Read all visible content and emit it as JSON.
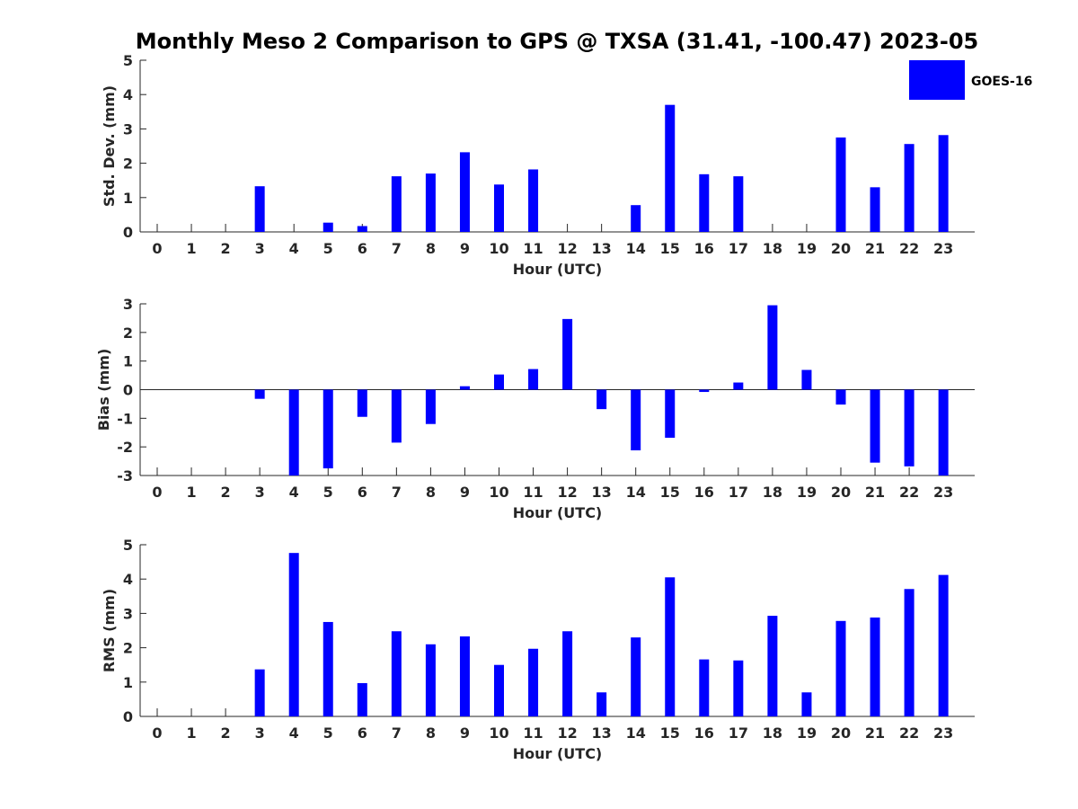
{
  "title": "Monthly Meso 2 Comparison to GPS @ TXSA (31.41, -100.47) 2023-05",
  "legend": {
    "label": "GOES-16",
    "color": "#0000ff",
    "placement": "top-right"
  },
  "chart_data": [
    {
      "type": "bar",
      "xlabel": "Hour (UTC)",
      "ylabel": "Std. Dev. (mm)",
      "ylim": [
        0,
        5
      ],
      "yticks": [
        "0",
        "1",
        "2",
        "3",
        "4",
        "5"
      ],
      "categories": [
        "0",
        "1",
        "2",
        "3",
        "4",
        "5",
        "6",
        "7",
        "8",
        "9",
        "10",
        "11",
        "12",
        "13",
        "14",
        "15",
        "16",
        "17",
        "18",
        "19",
        "20",
        "21",
        "22",
        "23"
      ],
      "series": [
        {
          "name": "GOES-16",
          "color": "#0000ff",
          "values": [
            null,
            null,
            null,
            1.33,
            null,
            0.27,
            0.17,
            1.62,
            1.7,
            2.32,
            1.38,
            1.82,
            null,
            null,
            0.78,
            3.7,
            1.68,
            1.62,
            null,
            null,
            2.75,
            1.3,
            2.56,
            2.82
          ]
        }
      ]
    },
    {
      "type": "bar",
      "xlabel": "Hour (UTC)",
      "ylabel": "Bias (mm)",
      "ylim": [
        -3,
        3
      ],
      "yticks": [
        "-3",
        "-2",
        "-1",
        "0",
        "1",
        "2",
        "3"
      ],
      "categories": [
        "0",
        "1",
        "2",
        "3",
        "4",
        "5",
        "6",
        "7",
        "8",
        "9",
        "10",
        "11",
        "12",
        "13",
        "14",
        "15",
        "16",
        "17",
        "18",
        "19",
        "20",
        "21",
        "22",
        "23"
      ],
      "series": [
        {
          "name": "GOES-16",
          "color": "#0000ff",
          "values": [
            null,
            null,
            null,
            -0.32,
            -3.0,
            -2.75,
            -0.95,
            -1.85,
            -1.2,
            0.12,
            0.53,
            0.72,
            2.47,
            -0.68,
            -2.12,
            -1.68,
            -0.08,
            0.25,
            2.95,
            0.69,
            -0.52,
            -2.55,
            -2.68,
            -3.0
          ]
        }
      ]
    },
    {
      "type": "bar",
      "xlabel": "Hour (UTC)",
      "ylabel": "RMS (mm)",
      "ylim": [
        0,
        5
      ],
      "yticks": [
        "0",
        "1",
        "2",
        "3",
        "4",
        "5"
      ],
      "categories": [
        "0",
        "1",
        "2",
        "3",
        "4",
        "5",
        "6",
        "7",
        "8",
        "9",
        "10",
        "11",
        "12",
        "13",
        "14",
        "15",
        "16",
        "17",
        "18",
        "19",
        "20",
        "21",
        "22",
        "23"
      ],
      "series": [
        {
          "name": "GOES-16",
          "color": "#0000ff",
          "values": [
            null,
            null,
            null,
            1.37,
            4.76,
            2.75,
            0.97,
            2.48,
            2.1,
            2.33,
            1.5,
            1.97,
            2.48,
            0.7,
            2.3,
            4.05,
            1.66,
            1.63,
            2.93,
            0.7,
            2.78,
            2.88,
            3.71,
            4.12
          ]
        }
      ]
    }
  ]
}
